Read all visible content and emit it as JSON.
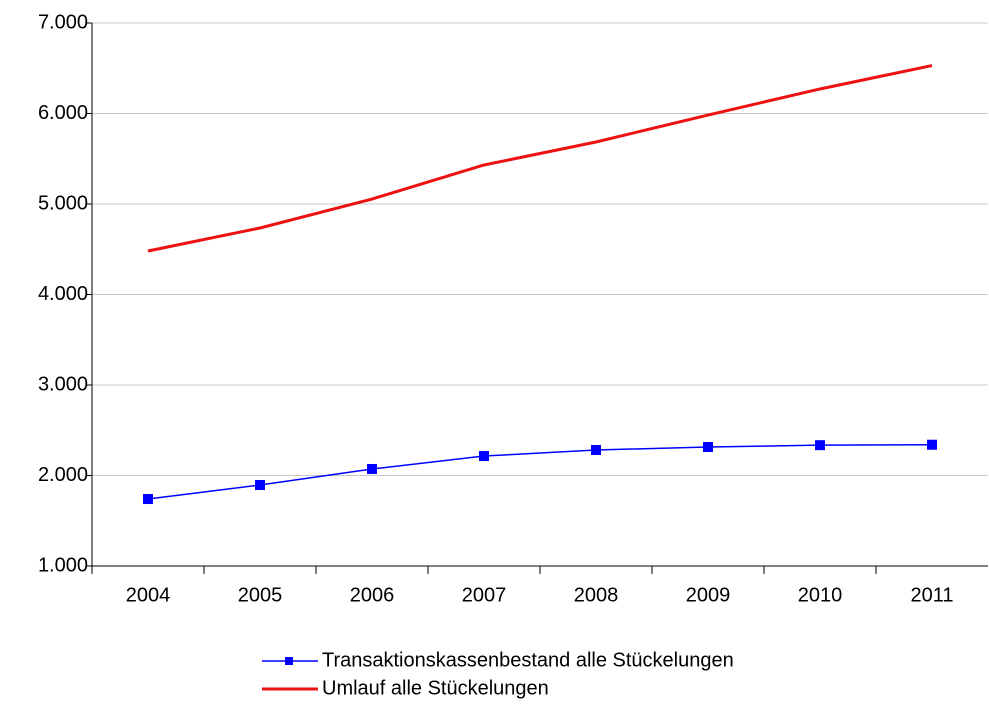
{
  "chart_data": {
    "type": "line",
    "categories": [
      "2004",
      "2005",
      "2006",
      "2007",
      "2008",
      "2009",
      "2010",
      "2011"
    ],
    "series": [
      {
        "name": "Transaktionskassenbestand alle Stückelungen",
        "color": "#0000ff",
        "marker": "square",
        "values": [
          1740,
          1895,
          2072,
          2215,
          2282,
          2315,
          2335,
          2340
        ]
      },
      {
        "name": "Umlauf alle Stückelungen",
        "color": "#ee1111",
        "values": [
          4481,
          4735,
          5055,
          5431,
          5685,
          5983,
          6271,
          6530
        ]
      }
    ],
    "ylim": [
      1000,
      7000
    ],
    "yticks": [
      {
        "value": 1000,
        "label": "1.000"
      },
      {
        "value": 2000,
        "label": "2.000"
      },
      {
        "value": 3000,
        "label": "3.000"
      },
      {
        "value": 4000,
        "label": "4.000"
      },
      {
        "value": 5000,
        "label": "5.000"
      },
      {
        "value": 6000,
        "label": "6.000"
      },
      {
        "value": 7000,
        "label": "7.000"
      }
    ],
    "grid": true,
    "legend": "bottom"
  }
}
